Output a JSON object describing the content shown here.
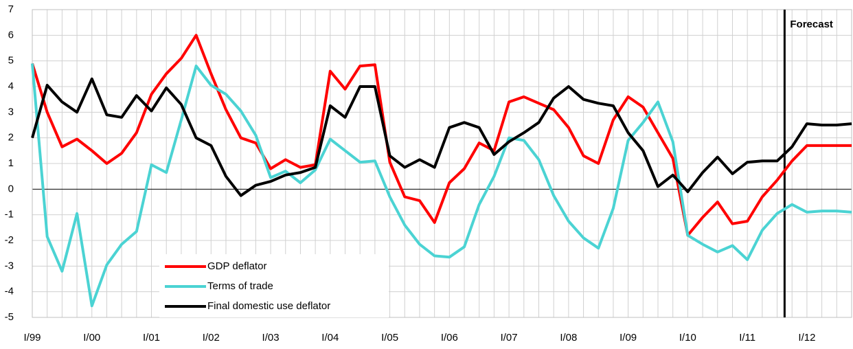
{
  "chart_data": {
    "type": "line",
    "categories": [
      "I/99",
      null,
      null,
      null,
      "I/00",
      null,
      null,
      null,
      "I/01",
      null,
      null,
      null,
      "I/02",
      null,
      null,
      null,
      "I/03",
      null,
      null,
      null,
      "I/04",
      null,
      null,
      null,
      "I/05",
      null,
      null,
      null,
      "I/06",
      null,
      null,
      null,
      "I/07",
      null,
      null,
      null,
      "I/08",
      null,
      null,
      null,
      "I/09",
      null,
      null,
      null,
      "I/10",
      null,
      null,
      null,
      "I/11",
      null,
      null,
      null,
      "I/12",
      null,
      null,
      null
    ],
    "series": [
      {
        "name": "GDP deflator",
        "color": "#ff0000",
        "values": [
          4.9,
          3.0,
          1.65,
          1.95,
          1.5,
          1.0,
          1.4,
          2.2,
          3.7,
          4.5,
          5.1,
          6.0,
          4.5,
          3.1,
          2.0,
          1.8,
          0.8,
          1.15,
          0.85,
          0.95,
          4.6,
          3.9,
          4.8,
          4.85,
          1.05,
          -0.3,
          -0.45,
          -1.3,
          0.25,
          0.8,
          1.8,
          1.5,
          3.4,
          3.6,
          3.35,
          3.1,
          2.4,
          1.3,
          1.0,
          2.7,
          3.6,
          3.2,
          2.2,
          1.2,
          -1.8,
          -1.1,
          -0.5,
          -1.35,
          -1.25,
          -0.3,
          0.35,
          1.1,
          1.7,
          1.7,
          1.7,
          1.7
        ]
      },
      {
        "name": "Terms of trade",
        "color": "#4bd3d3",
        "values": [
          4.9,
          -1.85,
          -3.2,
          -0.95,
          -4.55,
          -2.95,
          -2.15,
          -1.65,
          0.95,
          0.65,
          2.7,
          4.8,
          4.05,
          3.7,
          3.05,
          2.1,
          0.45,
          0.7,
          0.25,
          0.75,
          1.95,
          1.5,
          1.05,
          1.1,
          -0.3,
          -1.4,
          -2.15,
          -2.6,
          -2.65,
          -2.25,
          -0.6,
          0.5,
          2.0,
          1.9,
          1.15,
          -0.25,
          -1.25,
          -1.9,
          -2.3,
          -0.75,
          1.9,
          2.6,
          3.4,
          1.85,
          -1.8,
          -2.15,
          -2.45,
          -2.2,
          -2.75,
          -1.6,
          -0.95,
          -0.6,
          -0.9,
          -0.85,
          -0.85,
          -0.9
        ]
      },
      {
        "name": "Final domestic use deflator",
        "color": "#000000",
        "values": [
          2.0,
          4.05,
          3.4,
          3.0,
          4.3,
          2.9,
          2.8,
          3.65,
          3.05,
          3.95,
          3.3,
          2.0,
          1.7,
          0.5,
          -0.25,
          0.15,
          0.3,
          0.55,
          0.65,
          0.85,
          3.25,
          2.8,
          4.0,
          4.0,
          1.3,
          0.85,
          1.15,
          0.85,
          2.4,
          2.6,
          2.4,
          1.35,
          1.85,
          2.2,
          2.6,
          3.55,
          4.0,
          3.5,
          3.35,
          3.25,
          2.2,
          1.5,
          0.1,
          0.55,
          -0.1,
          0.65,
          1.25,
          0.6,
          1.05,
          1.1,
          1.1,
          1.65,
          2.55,
          2.5,
          2.5,
          2.55
        ]
      }
    ],
    "ylim": [
      -5,
      7
    ],
    "yticks": [
      -5,
      -4,
      -3,
      -2,
      -1,
      0,
      1,
      2,
      3,
      4,
      5,
      6,
      7
    ],
    "grid": true,
    "annotations": [
      {
        "text": "Forecast",
        "x": 50.5
      }
    ]
  }
}
